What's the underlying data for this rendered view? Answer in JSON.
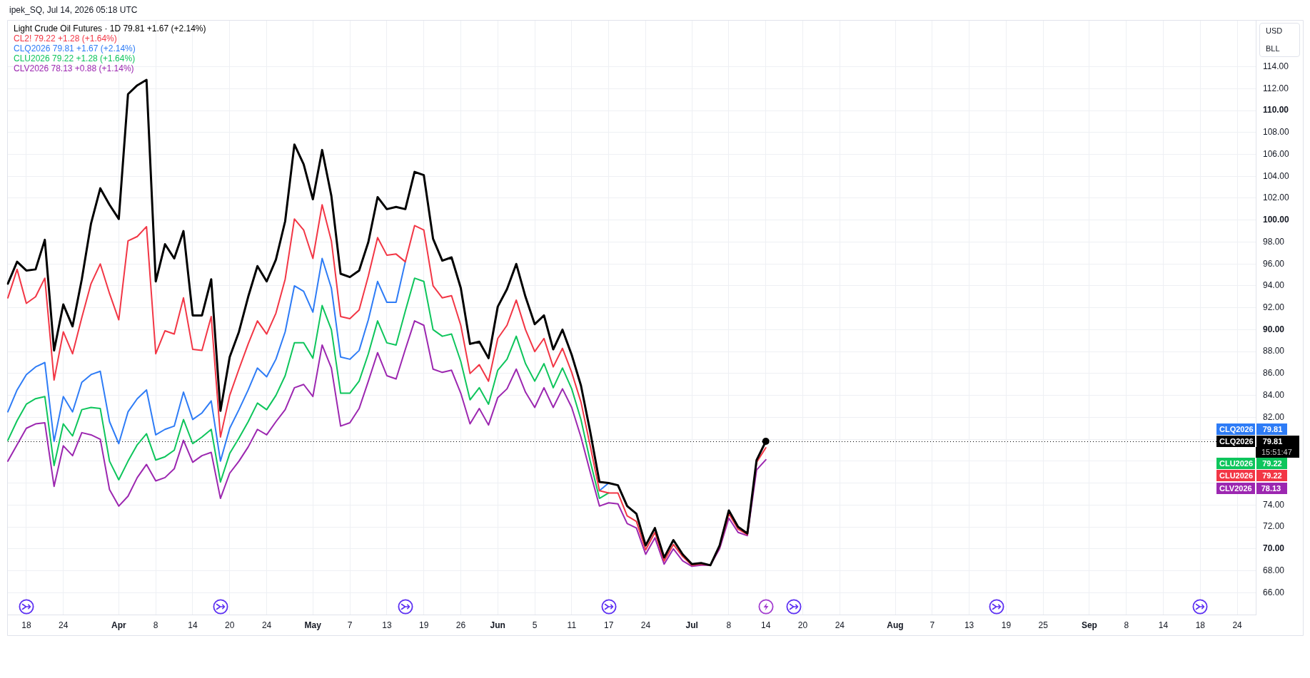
{
  "chart_data": {
    "type": "line",
    "title": "ipek_SQ, Jul 14, 2026 05:18 UTC",
    "categories": [
      null,
      null,
      "18",
      null,
      null,
      null,
      "24",
      null,
      null,
      null,
      null,
      null,
      "Apr",
      null,
      null,
      null,
      "8",
      null,
      null,
      null,
      "14",
      null,
      null,
      null,
      "20",
      null,
      null,
      null,
      "24",
      null,
      null,
      null,
      null,
      "May",
      null,
      null,
      null,
      "7",
      null,
      null,
      null,
      "13",
      null,
      null,
      null,
      "19",
      null,
      null,
      null,
      "26",
      null,
      null,
      null,
      "Jun",
      null,
      null,
      null,
      "5",
      null,
      null,
      null,
      "11",
      null,
      null,
      null,
      "17",
      null,
      null,
      null,
      "24",
      null,
      null,
      null,
      null,
      "Jul",
      null,
      null,
      null,
      "8",
      null,
      null,
      null,
      "14",
      null,
      null,
      null,
      "20",
      null,
      null,
      null,
      "24",
      null,
      null,
      null,
      null,
      null,
      "Aug",
      null,
      null,
      null,
      "7",
      null,
      null,
      null,
      "13",
      null,
      null,
      null,
      "19",
      null,
      null,
      null,
      "25",
      null,
      null,
      null,
      null,
      "Sep",
      null,
      null,
      null,
      "8",
      null,
      null,
      null,
      "14",
      null,
      null,
      null,
      "18",
      null,
      null,
      null,
      "24",
      null,
      null
    ],
    "series": [
      {
        "name": "Light Crude Oil Futures · 1D 79.81 +1.67 (+2.14%)",
        "color": "#000000",
        "values": [
          94.2,
          96.2,
          95.4,
          95.5,
          98.2,
          88.1,
          92.3,
          90.3,
          94.6,
          99.7,
          102.9,
          101.4,
          100.1,
          111.5,
          112.3,
          112.8,
          94.4,
          97.8,
          96.5,
          99.0,
          91.3,
          91.3,
          94.6,
          82.6,
          87.5,
          89.8,
          93.0,
          95.8,
          94.4,
          96.4,
          99.9,
          106.9,
          105.1,
          101.9,
          106.4,
          102.2,
          95.1,
          94.8,
          95.4,
          98.0,
          102.1,
          101.0,
          101.2,
          101.0,
          104.4,
          104.1,
          98.3,
          96.3,
          96.6,
          93.8,
          88.7,
          88.9,
          87.4,
          92.1,
          93.7,
          96.0,
          93.0,
          90.5,
          91.3,
          88.2,
          90.0,
          87.7,
          84.9,
          80.7,
          76.1,
          76.0,
          75.8,
          73.9,
          73.2,
          70.3,
          71.9,
          69.2,
          70.8,
          69.5,
          68.6,
          68.7,
          68.5,
          70.3,
          73.5,
          72.0,
          71.4,
          78.1,
          79.81,
          null,
          null,
          null,
          null,
          null,
          null,
          null,
          null,
          null,
          null,
          null,
          null,
          null,
          null,
          null,
          null,
          null,
          null,
          null,
          null,
          null,
          null,
          null,
          null,
          null,
          null,
          null,
          null,
          null,
          null,
          null,
          null,
          null,
          null,
          null,
          null,
          null,
          null,
          null,
          null,
          null,
          null,
          null,
          null,
          null,
          null,
          null,
          null,
          null,
          null,
          null,
          null,
          null
        ]
      },
      {
        "name": "CL2! 79.22 +1.28 (+1.64%)",
        "color": "#f23645",
        "values": [
          92.9,
          95.5,
          92.4,
          93.0,
          94.7,
          85.4,
          89.8,
          87.8,
          91.1,
          94.2,
          96.0,
          93.3,
          90.9,
          98.1,
          98.5,
          99.4,
          87.8,
          89.9,
          89.6,
          92.9,
          88.2,
          88.1,
          91.2,
          80.2,
          84.0,
          86.4,
          88.7,
          90.8,
          89.6,
          91.5,
          94.6,
          100.1,
          99.1,
          96.5,
          101.4,
          98.1,
          91.2,
          91.0,
          91.8,
          94.9,
          98.4,
          96.8,
          96.9,
          96.2,
          99.5,
          99.1,
          94.0,
          92.9,
          93.1,
          90.4,
          86.0,
          86.8,
          85.3,
          89.2,
          90.4,
          92.7,
          90.0,
          88.0,
          89.2,
          86.6,
          88.3,
          86.1,
          83.4,
          79.4,
          75.3,
          75.1,
          75.1,
          73.0,
          72.5,
          69.9,
          71.5,
          68.9,
          70.4,
          69.3,
          68.5,
          68.6,
          68.5,
          70.2,
          73.2,
          71.8,
          71.3,
          77.9,
          79.22,
          null,
          null,
          null,
          null,
          null,
          null,
          null,
          null,
          null,
          null,
          null,
          null,
          null,
          null,
          null,
          null,
          null,
          null,
          null,
          null,
          null,
          null,
          null,
          null,
          null,
          null,
          null,
          null,
          null,
          null,
          null,
          null,
          null,
          null,
          null,
          null,
          null,
          null,
          null,
          null,
          null,
          null,
          null,
          null,
          null,
          null,
          null,
          null,
          null,
          null,
          null,
          null,
          null
        ]
      },
      {
        "name": "CLQ2026 79.81 +1.67 (+2.14%)",
        "color": "#2e7cf6",
        "values": [
          82.5,
          84.5,
          85.9,
          86.6,
          87.0,
          79.8,
          83.9,
          82.5,
          85.2,
          85.9,
          86.2,
          81.6,
          79.6,
          82.5,
          83.7,
          84.5,
          80.4,
          80.9,
          81.2,
          84.3,
          81.8,
          82.4,
          83.5,
          78.0,
          81.0,
          82.7,
          84.5,
          86.5,
          85.7,
          87.3,
          89.8,
          94.0,
          93.5,
          91.6,
          96.5,
          93.8,
          87.5,
          87.3,
          88.1,
          90.9,
          94.4,
          92.5,
          92.5,
          96.2,
          null,
          null,
          null,
          null,
          null,
          null,
          null,
          null,
          null,
          null,
          null,
          null,
          null,
          null,
          null,
          null,
          null,
          null,
          null,
          null,
          75.3,
          76.0,
          null,
          null,
          null,
          null,
          null,
          null,
          null,
          null,
          null,
          null,
          null,
          null,
          null,
          null,
          null,
          null,
          null,
          null,
          null,
          null,
          null,
          null,
          null,
          null,
          null,
          null,
          null,
          null,
          null,
          null,
          null,
          null,
          null,
          null,
          null,
          null,
          null,
          null,
          null,
          null,
          null,
          null,
          null,
          null,
          null,
          null,
          null,
          null,
          null,
          null,
          null,
          null,
          null,
          null,
          null,
          null,
          null,
          null,
          null,
          null,
          null,
          null,
          null,
          null,
          null,
          null,
          null,
          null,
          null,
          null
        ]
      },
      {
        "name": "CLU2026 79.22 +1.28 (+1.64%)",
        "color": "#0ec55c",
        "values": [
          79.9,
          81.7,
          83.2,
          83.7,
          83.9,
          77.6,
          81.4,
          80.3,
          82.7,
          82.9,
          82.8,
          78.0,
          76.3,
          78.0,
          79.5,
          80.5,
          78.1,
          78.4,
          79.0,
          81.8,
          79.6,
          80.2,
          80.9,
          76.1,
          78.7,
          80.1,
          81.6,
          83.3,
          82.7,
          84.0,
          85.8,
          88.8,
          88.8,
          87.4,
          92.2,
          90.0,
          84.2,
          84.2,
          85.3,
          87.8,
          90.8,
          88.8,
          88.6,
          91.7,
          94.7,
          94.4,
          90.0,
          89.4,
          89.6,
          87.1,
          83.6,
          84.7,
          83.2,
          86.3,
          87.3,
          89.4,
          86.9,
          85.3,
          86.9,
          84.7,
          86.5,
          84.6,
          81.8,
          78.0,
          74.6,
          75.1,
          null,
          null,
          null,
          null,
          null,
          null,
          null,
          null,
          null,
          null,
          null,
          null,
          null,
          null,
          null,
          null,
          null,
          null,
          null,
          null,
          null,
          null,
          null,
          null,
          null,
          null,
          null,
          null,
          null,
          null,
          null,
          null,
          null,
          null,
          null,
          null,
          null,
          null,
          null,
          null,
          null,
          null,
          null,
          null,
          null,
          null,
          null,
          null,
          null,
          null,
          null,
          null,
          null,
          null,
          null,
          null,
          null,
          null,
          null,
          null,
          null,
          null,
          null,
          null,
          null,
          null,
          null,
          null,
          null,
          null
        ]
      },
      {
        "name": "CLV2026 78.13 +0.88 (+1.14%)",
        "color": "#9c27b0",
        "values": [
          78.0,
          79.5,
          81.0,
          81.4,
          81.5,
          75.7,
          79.4,
          78.5,
          80.6,
          80.4,
          80.0,
          75.4,
          73.9,
          74.8,
          76.5,
          77.7,
          76.2,
          76.5,
          77.3,
          79.9,
          77.9,
          78.5,
          78.8,
          74.6,
          76.9,
          78.0,
          79.3,
          80.9,
          80.4,
          81.6,
          82.7,
          84.7,
          85.0,
          83.9,
          88.6,
          86.5,
          81.2,
          81.5,
          82.8,
          85.3,
          87.9,
          85.8,
          85.5,
          88.2,
          90.8,
          90.4,
          86.4,
          86.1,
          86.3,
          84.2,
          81.4,
          82.8,
          81.3,
          83.8,
          84.6,
          86.4,
          84.3,
          82.9,
          84.7,
          82.9,
          84.6,
          82.9,
          80.2,
          77.0,
          73.9,
          74.2,
          74.1,
          72.3,
          71.9,
          69.5,
          71.0,
          68.6,
          70.0,
          68.9,
          68.4,
          68.5,
          68.5,
          70.0,
          72.8,
          71.5,
          71.2,
          77.2,
          78.13,
          null,
          null,
          null,
          null,
          null,
          null,
          null,
          null,
          null,
          null,
          null,
          null,
          null,
          null,
          null,
          null,
          null,
          null,
          null,
          null,
          null,
          null,
          null,
          null,
          null,
          null,
          null,
          null,
          null,
          null,
          null,
          null,
          null,
          null,
          null,
          null,
          null,
          null,
          null,
          null,
          null,
          null,
          null,
          null,
          null,
          null,
          null,
          null,
          null,
          null,
          null,
          null,
          null
        ]
      },
      {
        "type": "scatter",
        "marker": "circle",
        "color": "#000000",
        "values": [
          null,
          null,
          null,
          null,
          null,
          null,
          null,
          null,
          null,
          null,
          null,
          null,
          null,
          null,
          null,
          null,
          null,
          null,
          null,
          null,
          null,
          null,
          null,
          null,
          null,
          null,
          null,
          null,
          null,
          null,
          null,
          null,
          null,
          null,
          null,
          null,
          null,
          null,
          null,
          null,
          null,
          null,
          null,
          null,
          null,
          null,
          null,
          null,
          null,
          null,
          null,
          null,
          null,
          null,
          null,
          null,
          null,
          null,
          null,
          null,
          null,
          null,
          null,
          null,
          null,
          null,
          null,
          null,
          null,
          null,
          null,
          null,
          null,
          null,
          null,
          null,
          null,
          null,
          null,
          null,
          null,
          null,
          79.81,
          null,
          null,
          null,
          null,
          null,
          null,
          null,
          null,
          null,
          null,
          null,
          null,
          null,
          null,
          null,
          null,
          null,
          null,
          null,
          null,
          null,
          null,
          null,
          null,
          null,
          null,
          null,
          null,
          null,
          null,
          null,
          null,
          null,
          null,
          null,
          null,
          null,
          null,
          null,
          null,
          null,
          null,
          null,
          null,
          null,
          null,
          null,
          null,
          null,
          null,
          null,
          null,
          null
        ]
      }
    ],
    "ylim": [
      64,
      118.2
    ],
    "yticks": [
      {
        "value": 66,
        "label": "66.00"
      },
      {
        "value": 68,
        "label": "68.00"
      },
      {
        "value": 70,
        "label": "70.00"
      },
      {
        "value": 72,
        "label": "72.00"
      },
      {
        "value": 74,
        "label": "74.00"
      },
      {
        "value": 76,
        "label": null
      },
      {
        "value": 78,
        "label": null
      },
      {
        "value": 80,
        "label": null
      },
      {
        "value": 82,
        "label": "82.00"
      },
      {
        "value": 84,
        "label": "84.00"
      },
      {
        "value": 86,
        "label": "86.00"
      },
      {
        "value": 88,
        "label": "88.00"
      },
      {
        "value": 90,
        "label": "90.00"
      },
      {
        "value": 92,
        "label": "92.00"
      },
      {
        "value": 94,
        "label": "94.00"
      },
      {
        "value": 96,
        "label": "96.00"
      },
      {
        "value": 98,
        "label": "98.00"
      },
      {
        "value": 100,
        "label": "100.00"
      },
      {
        "value": 102,
        "label": "102.00"
      },
      {
        "value": 104,
        "label": "104.00"
      },
      {
        "value": 106,
        "label": "106.00"
      },
      {
        "value": 108,
        "label": "108.00"
      },
      {
        "value": 110,
        "label": "110.00"
      },
      {
        "value": 112,
        "label": "112.00"
      },
      {
        "value": 114,
        "label": "114.00"
      }
    ],
    "grid": true,
    "legend": "top left",
    "ref_lines": [
      {
        "axis": "y",
        "value": 79.81,
        "color": "#000000",
        "line_style": "dotted"
      }
    ],
    "annotations": [
      "USD",
      "BLL",
      "CLQ2026 79.81",
      "CLQ2026 79.81",
      "15:51:47",
      "CLU2026 79.22",
      "CLU2026 79.22",
      "CLV2026 78.13"
    ]
  }
}
